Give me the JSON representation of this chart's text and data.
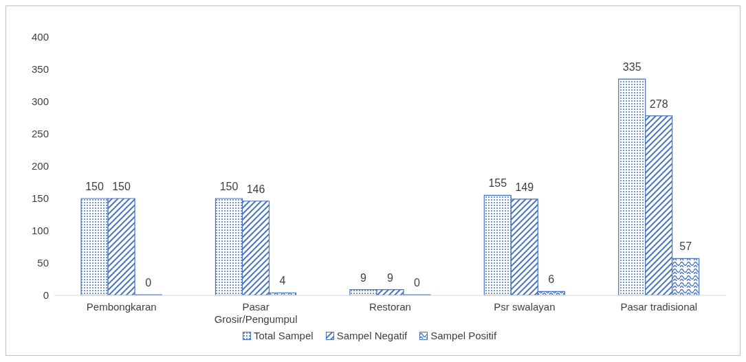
{
  "chart_data": {
    "type": "bar",
    "categories": [
      "Pembongkaran",
      "Pasar Grosir/Pengumpul",
      "Restoran",
      "Psr swalayan",
      "Pasar tradisional"
    ],
    "series": [
      {
        "name": "Total Sampel",
        "color": "#4472c4",
        "values": [
          150,
          150,
          9,
          155,
          335
        ]
      },
      {
        "name": "Sampel Negatif",
        "color": "#4472c4",
        "values": [
          150,
          146,
          9,
          149,
          278
        ]
      },
      {
        "name": "Sampel Positif",
        "color": "#4472c4",
        "values": [
          0,
          4,
          0,
          6,
          57
        ]
      }
    ],
    "ylim": [
      0,
      400
    ],
    "yticks": [
      0,
      50,
      100,
      150,
      200,
      250,
      300,
      350,
      400
    ],
    "grid": false,
    "legend": "bottom",
    "data_labels": true
  }
}
